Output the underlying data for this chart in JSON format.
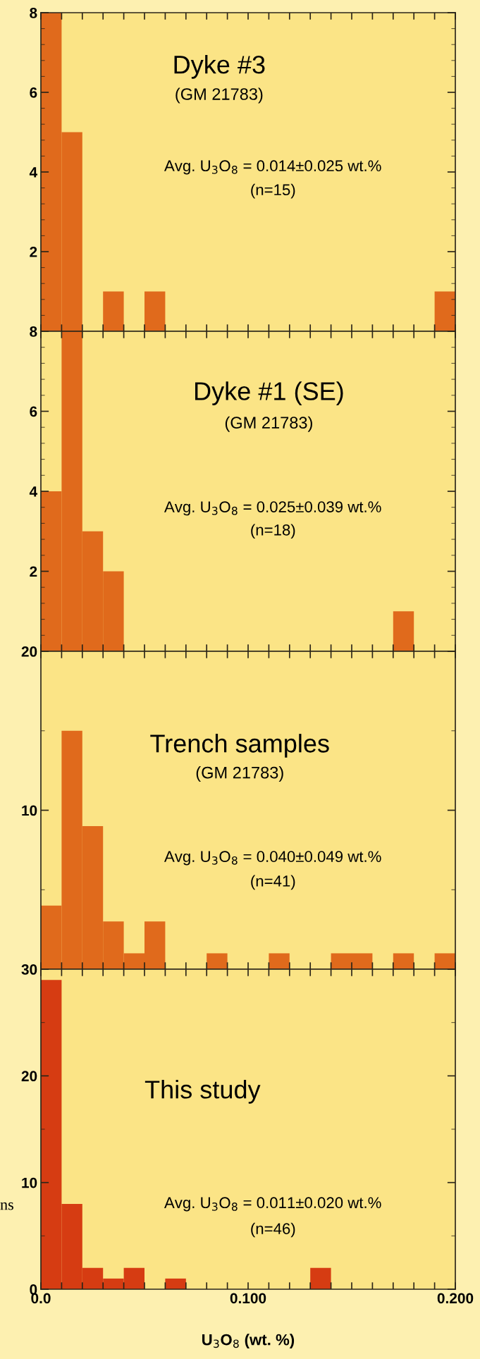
{
  "chart_data": [
    {
      "type": "histogram",
      "title": "Dyke #3",
      "subtitle": "(GM 21783)",
      "annotations": [
        "Avg. U$_{3}$O$_{8}$ = 0.014±0.025 wt.%",
        "(n=15)"
      ],
      "bins": [
        0,
        0.01,
        0.02,
        0.03,
        0.04,
        0.05,
        0.06,
        0.07,
        0.08,
        0.09,
        0.1,
        0.11,
        0.12,
        0.13,
        0.14,
        0.15,
        0.16,
        0.17,
        0.18,
        0.19,
        0.2
      ],
      "values": [
        8,
        5,
        0,
        1,
        0,
        1,
        0,
        0,
        0,
        0,
        0,
        0,
        0,
        0,
        0,
        0,
        0,
        0,
        0,
        1
      ],
      "color": "#e06a1c",
      "xlim": [
        0,
        0.2
      ],
      "ylim": [
        0,
        8
      ],
      "yticks": [
        2,
        4,
        6,
        8
      ],
      "tick_labels": "y",
      "xticks": [
        0,
        0.1,
        0.2
      ]
    },
    {
      "type": "histogram",
      "title": "Dyke #1 (SE)",
      "subtitle": "(GM 21783)",
      "annotations": [
        "Avg. U$_{3}$O$_{8}$ = 0.025±0.039 wt.%",
        "(n=18)"
      ],
      "bins": [
        0,
        0.01,
        0.02,
        0.03,
        0.04,
        0.05,
        0.06,
        0.07,
        0.08,
        0.09,
        0.1,
        0.11,
        0.12,
        0.13,
        0.14,
        0.15,
        0.16,
        0.17,
        0.18,
        0.19,
        0.2
      ],
      "values": [
        4,
        8,
        3,
        2,
        0,
        0,
        0,
        0,
        0,
        0,
        0,
        0,
        0,
        0,
        0,
        0,
        0,
        1,
        0,
        0
      ],
      "color": "#e06a1c",
      "xlim": [
        0,
        0.2
      ],
      "ylim": [
        0,
        8
      ],
      "yticks": [
        2,
        4,
        6,
        8
      ],
      "tick_labels": "y",
      "xticks": [
        0,
        0.1,
        0.2
      ]
    },
    {
      "type": "histogram",
      "title": "Trench samples",
      "subtitle": "(GM 21783)",
      "annotations": [
        "Avg. U$_{3}$O$_{8}$ = 0.040±0.049 wt.%",
        "(n=41)"
      ],
      "bins": [
        0,
        0.01,
        0.02,
        0.03,
        0.04,
        0.05,
        0.06,
        0.07,
        0.08,
        0.09,
        0.1,
        0.11,
        0.12,
        0.13,
        0.14,
        0.15,
        0.16,
        0.17,
        0.18,
        0.19,
        0.2
      ],
      "values": [
        4,
        15,
        9,
        3,
        1,
        3,
        0,
        0,
        1,
        0,
        0,
        1,
        0,
        0,
        1,
        1,
        0,
        1,
        0,
        1
      ],
      "color": "#e06a1c",
      "xlim": [
        0,
        0.2
      ],
      "ylim": [
        0,
        20
      ],
      "yticks": [
        10,
        20
      ],
      "tick_labels": "y",
      "xticks": [
        0,
        0.1,
        0.2
      ]
    },
    {
      "type": "histogram",
      "title": "This study",
      "annotations": [
        "Avg. U$_{3}$O$_{8}$ = 0.011±0.020 wt.%",
        "(n=46)"
      ],
      "xlabel": "U$_{3}$O$_{8}$ (wt. %)",
      "ylabel": "ns",
      "bins": [
        0,
        0.01,
        0.02,
        0.03,
        0.04,
        0.05,
        0.06,
        0.07,
        0.08,
        0.09,
        0.1,
        0.11,
        0.12,
        0.13,
        0.14,
        0.15,
        0.16,
        0.17,
        0.18,
        0.19,
        0.2
      ],
      "values": [
        29,
        8,
        2,
        1,
        2,
        0,
        1,
        0,
        0,
        0,
        0,
        0,
        0,
        2,
        0,
        0,
        0,
        0,
        0,
        0
      ],
      "color": "#d63c12",
      "xlim": [
        0,
        0.2
      ],
      "ylim": [
        0,
        30
      ],
      "yticks": [
        0,
        10,
        20,
        30
      ],
      "xticks": [
        {
          "value": 0,
          "label": "0.0"
        },
        {
          "value": 0.1,
          "label": "0.100"
        },
        {
          "value": 0.2,
          "label": "0.200"
        }
      ]
    }
  ]
}
